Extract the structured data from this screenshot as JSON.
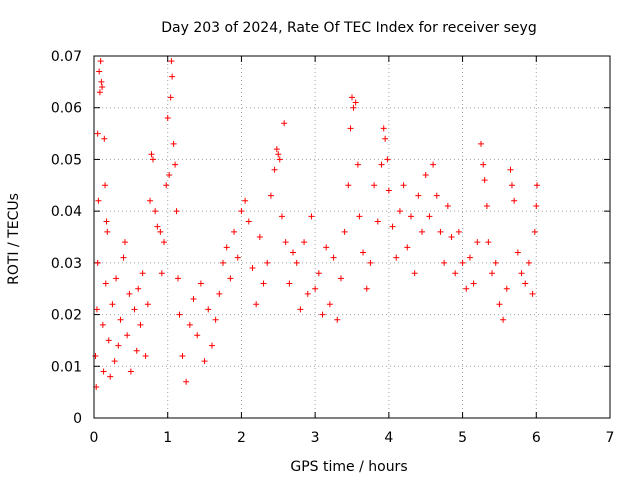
{
  "chart_data": {
    "type": "scatter",
    "title": "Day 203 of 2024, Rate Of TEC Index for receiver seyg",
    "xlabel": "GPS time / hours",
    "ylabel": "ROTI / TECUs",
    "xlim": [
      0,
      7
    ],
    "ylim": [
      0,
      0.07
    ],
    "xticks": [
      0,
      1,
      2,
      3,
      4,
      5,
      6,
      7
    ],
    "yticks": [
      0,
      0.01,
      0.02,
      0.03,
      0.04,
      0.05,
      0.06,
      0.07
    ],
    "xtick_labels": [
      "0",
      "1",
      "2",
      "3",
      "4",
      "5",
      "6",
      "7"
    ],
    "ytick_labels": [
      "0",
      "0.01",
      "0.02",
      "0.03",
      "0.04",
      "0.05",
      "0.06",
      "0.07"
    ],
    "grid": true,
    "marker": "+",
    "color": "#ff0000",
    "series": [
      {
        "name": "ROTI",
        "points": [
          [
            0.02,
            0.012
          ],
          [
            0.03,
            0.006
          ],
          [
            0.04,
            0.021
          ],
          [
            0.05,
            0.03
          ],
          [
            0.05,
            0.055
          ],
          [
            0.06,
            0.042
          ],
          [
            0.07,
            0.067
          ],
          [
            0.08,
            0.063
          ],
          [
            0.09,
            0.069
          ],
          [
            0.1,
            0.065
          ],
          [
            0.11,
            0.064
          ],
          [
            0.12,
            0.018
          ],
          [
            0.13,
            0.009
          ],
          [
            0.14,
            0.054
          ],
          [
            0.15,
            0.045
          ],
          [
            0.16,
            0.026
          ],
          [
            0.17,
            0.038
          ],
          [
            0.18,
            0.036
          ],
          [
            0.2,
            0.015
          ],
          [
            0.22,
            0.008
          ],
          [
            0.25,
            0.022
          ],
          [
            0.28,
            0.011
          ],
          [
            0.3,
            0.027
          ],
          [
            0.33,
            0.014
          ],
          [
            0.36,
            0.019
          ],
          [
            0.4,
            0.031
          ],
          [
            0.42,
            0.034
          ],
          [
            0.45,
            0.016
          ],
          [
            0.48,
            0.024
          ],
          [
            0.5,
            0.009
          ],
          [
            0.55,
            0.021
          ],
          [
            0.58,
            0.013
          ],
          [
            0.6,
            0.025
          ],
          [
            0.63,
            0.018
          ],
          [
            0.66,
            0.028
          ],
          [
            0.7,
            0.012
          ],
          [
            0.73,
            0.022
          ],
          [
            0.76,
            0.042
          ],
          [
            0.78,
            0.051
          ],
          [
            0.8,
            0.05
          ],
          [
            0.83,
            0.04
          ],
          [
            0.86,
            0.037
          ],
          [
            0.9,
            0.036
          ],
          [
            0.92,
            0.028
          ],
          [
            0.95,
            0.034
          ],
          [
            0.98,
            0.045
          ],
          [
            1.0,
            0.058
          ],
          [
            1.02,
            0.047
          ],
          [
            1.04,
            0.062
          ],
          [
            1.05,
            0.069
          ],
          [
            1.06,
            0.066
          ],
          [
            1.08,
            0.053
          ],
          [
            1.1,
            0.049
          ],
          [
            1.12,
            0.04
          ],
          [
            1.14,
            0.027
          ],
          [
            1.16,
            0.02
          ],
          [
            1.2,
            0.012
          ],
          [
            1.25,
            0.007
          ],
          [
            1.3,
            0.018
          ],
          [
            1.35,
            0.023
          ],
          [
            1.4,
            0.016
          ],
          [
            1.45,
            0.026
          ],
          [
            1.5,
            0.011
          ],
          [
            1.55,
            0.021
          ],
          [
            1.6,
            0.014
          ],
          [
            1.65,
            0.019
          ],
          [
            1.7,
            0.024
          ],
          [
            1.75,
            0.03
          ],
          [
            1.8,
            0.033
          ],
          [
            1.85,
            0.027
          ],
          [
            1.9,
            0.036
          ],
          [
            1.95,
            0.031
          ],
          [
            2.0,
            0.04
          ],
          [
            2.05,
            0.042
          ],
          [
            2.1,
            0.038
          ],
          [
            2.15,
            0.029
          ],
          [
            2.2,
            0.022
          ],
          [
            2.25,
            0.035
          ],
          [
            2.3,
            0.026
          ],
          [
            2.35,
            0.03
          ],
          [
            2.4,
            0.043
          ],
          [
            2.45,
            0.048
          ],
          [
            2.48,
            0.052
          ],
          [
            2.5,
            0.051
          ],
          [
            2.52,
            0.05
          ],
          [
            2.55,
            0.039
          ],
          [
            2.58,
            0.057
          ],
          [
            2.6,
            0.034
          ],
          [
            2.65,
            0.026
          ],
          [
            2.7,
            0.032
          ],
          [
            2.75,
            0.03
          ],
          [
            2.8,
            0.021
          ],
          [
            2.85,
            0.034
          ],
          [
            2.9,
            0.024
          ],
          [
            2.95,
            0.039
          ],
          [
            3.0,
            0.025
          ],
          [
            3.05,
            0.028
          ],
          [
            3.1,
            0.02
          ],
          [
            3.15,
            0.033
          ],
          [
            3.2,
            0.022
          ],
          [
            3.25,
            0.031
          ],
          [
            3.3,
            0.019
          ],
          [
            3.35,
            0.027
          ],
          [
            3.4,
            0.036
          ],
          [
            3.45,
            0.045
          ],
          [
            3.48,
            0.056
          ],
          [
            3.5,
            0.062
          ],
          [
            3.52,
            0.06
          ],
          [
            3.55,
            0.061
          ],
          [
            3.58,
            0.049
          ],
          [
            3.6,
            0.039
          ],
          [
            3.65,
            0.032
          ],
          [
            3.7,
            0.025
          ],
          [
            3.75,
            0.03
          ],
          [
            3.8,
            0.045
          ],
          [
            3.85,
            0.038
          ],
          [
            3.9,
            0.049
          ],
          [
            3.93,
            0.056
          ],
          [
            3.95,
            0.054
          ],
          [
            3.98,
            0.05
          ],
          [
            4.0,
            0.044
          ],
          [
            4.05,
            0.037
          ],
          [
            4.1,
            0.031
          ],
          [
            4.15,
            0.04
          ],
          [
            4.2,
            0.045
          ],
          [
            4.25,
            0.033
          ],
          [
            4.3,
            0.039
          ],
          [
            4.35,
            0.028
          ],
          [
            4.4,
            0.043
          ],
          [
            4.45,
            0.036
          ],
          [
            4.5,
            0.047
          ],
          [
            4.55,
            0.039
          ],
          [
            4.6,
            0.049
          ],
          [
            4.65,
            0.043
          ],
          [
            4.7,
            0.036
          ],
          [
            4.75,
            0.03
          ],
          [
            4.8,
            0.041
          ],
          [
            4.85,
            0.035
          ],
          [
            4.9,
            0.028
          ],
          [
            4.95,
            0.036
          ],
          [
            5.0,
            0.03
          ],
          [
            5.05,
            0.025
          ],
          [
            5.1,
            0.031
          ],
          [
            5.15,
            0.026
          ],
          [
            5.2,
            0.034
          ],
          [
            5.25,
            0.053
          ],
          [
            5.28,
            0.049
          ],
          [
            5.3,
            0.046
          ],
          [
            5.33,
            0.041
          ],
          [
            5.35,
            0.034
          ],
          [
            5.4,
            0.028
          ],
          [
            5.45,
            0.03
          ],
          [
            5.5,
            0.022
          ],
          [
            5.55,
            0.019
          ],
          [
            5.6,
            0.025
          ],
          [
            5.65,
            0.048
          ],
          [
            5.67,
            0.045
          ],
          [
            5.7,
            0.042
          ],
          [
            5.75,
            0.032
          ],
          [
            5.8,
            0.028
          ],
          [
            5.85,
            0.026
          ],
          [
            5.9,
            0.03
          ],
          [
            5.95,
            0.024
          ],
          [
            5.98,
            0.036
          ],
          [
            6.0,
            0.041
          ],
          [
            6.01,
            0.045
          ]
        ]
      }
    ]
  }
}
